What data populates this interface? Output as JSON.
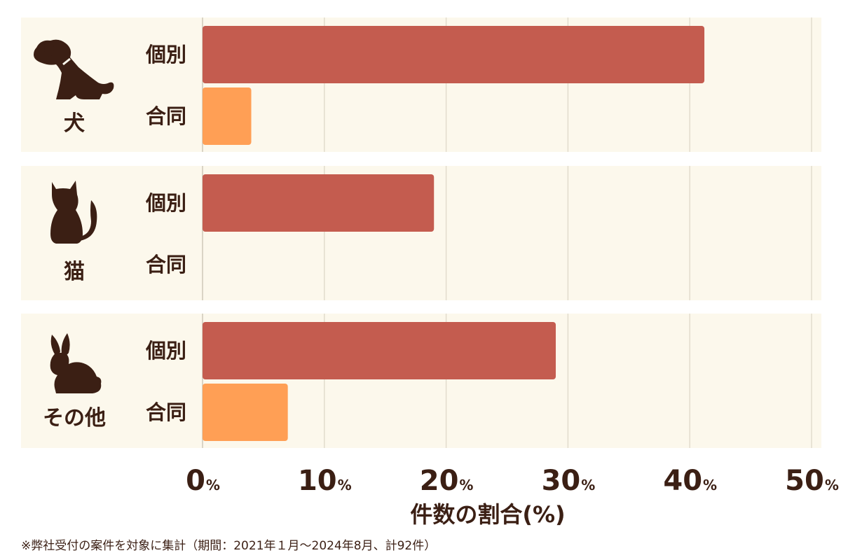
{
  "chart_data": {
    "type": "bar",
    "orientation": "horizontal",
    "categories": [
      "犬",
      "猫",
      "その他"
    ],
    "series": [
      {
        "name": "個別",
        "color": "#c45c4f",
        "values": [
          41.2,
          19.0,
          29.0
        ]
      },
      {
        "name": "合同",
        "color": "#ff9f55",
        "values": [
          4.0,
          0,
          7.0
        ]
      }
    ],
    "category_icons": [
      "dog-icon",
      "cat-icon",
      "rabbit-icon"
    ],
    "xlim": [
      0,
      50
    ],
    "x_ticks": [
      "0",
      "10",
      "20",
      "30",
      "40",
      "50"
    ],
    "x_tick_unit": "%",
    "xlabel": "件数の割合(%)",
    "grid": true,
    "panel_background": "#fcf8ec",
    "text_color": "#3b1f14"
  },
  "footnote": "※弊社受付の案件を対象に集計（期間：2021年１月～2024年8月、計92件）"
}
